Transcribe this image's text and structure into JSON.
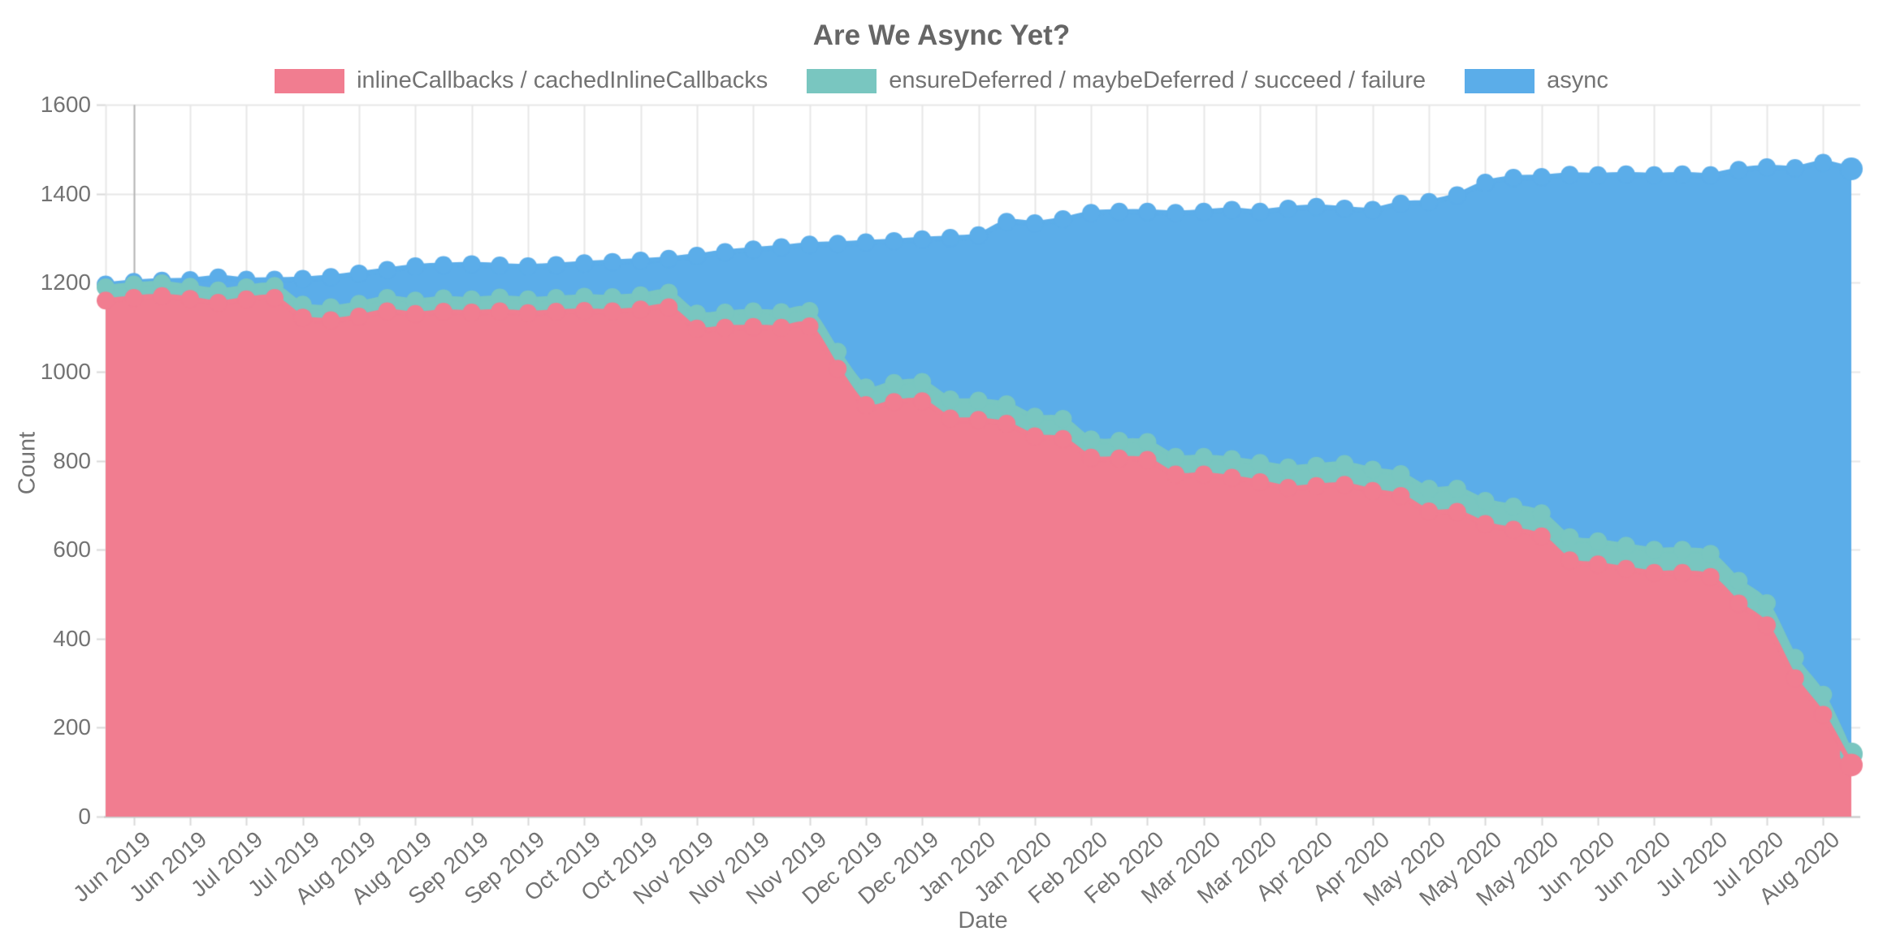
{
  "title": "Are We Async Yet?",
  "legend": {
    "items": [
      {
        "label": "inlineCallbacks / cachedInlineCallbacks",
        "color": "#f17d90"
      },
      {
        "label": "ensureDeferred / maybeDeferred / succeed / failure",
        "color": "#79c6c0"
      },
      {
        "label": "async",
        "color": "#5bade9"
      }
    ]
  },
  "chart_data": {
    "type": "area",
    "stacked": true,
    "title": "Are We Async Yet?",
    "xlabel": "Date",
    "ylabel": "Count",
    "ylim": [
      0,
      1600
    ],
    "grid": true,
    "legend_position": "top",
    "point_markers": true,
    "y_ticks": [
      0,
      200,
      400,
      600,
      800,
      1000,
      1200,
      1400,
      1600
    ],
    "x_tick_labels": [
      "Jun 2019",
      "Jun 2019",
      "Jul 2019",
      "Jul 2019",
      "Aug 2019",
      "Aug 2019",
      "Sep 2019",
      "Sep 2019",
      "Oct 2019",
      "Oct 2019",
      "Nov 2019",
      "Nov 2019",
      "Nov 2019",
      "Dec 2019",
      "Dec 2019",
      "Jan 2020",
      "Jan 2020",
      "Feb 2020",
      "Feb 2020",
      "Mar 2020",
      "Mar 2020",
      "Apr 2020",
      "Apr 2020",
      "May 2020",
      "May 2020",
      "May 2020",
      "Jun 2020",
      "Jun 2020",
      "Jul 2020",
      "Jul 2020",
      "Aug 2020"
    ],
    "x_tick_first_point_index": 1,
    "x_tick_point_step": 2,
    "points_per_week": 1,
    "series": [
      {
        "name": "inlineCallbacks / cachedInlineCallbacks",
        "color": "#f17d90",
        "values": [
          1160,
          1166,
          1170,
          1164,
          1155,
          1163,
          1166,
          1122,
          1116,
          1124,
          1136,
          1130,
          1135,
          1133,
          1136,
          1132,
          1135,
          1137,
          1136,
          1140,
          1145,
          1097,
          1099,
          1101,
          1099,
          1102,
          1007,
          925,
          932,
          934,
          895,
          892,
          883,
          855,
          849,
          807,
          805,
          802,
          769,
          769,
          762,
          752,
          739,
          743,
          746,
          732,
          721,
          686,
          685,
          658,
          645,
          630,
          576,
          567,
          557,
          548,
          548,
          539,
          479,
          430,
          311,
          229,
          116
        ]
      },
      {
        "name": "ensureDeferred / maybeDeferred / succeed / failure",
        "color": "#79c6c0",
        "values": [
          30,
          30,
          29,
          27,
          28,
          27,
          27,
          29,
          29,
          29,
          30,
          30,
          30,
          30,
          31,
          31,
          31,
          32,
          32,
          32,
          33,
          34,
          34,
          35,
          35,
          35,
          38,
          40,
          43,
          43,
          43,
          43,
          44,
          44,
          45,
          41,
          40,
          40,
          40,
          40,
          42,
          43,
          46,
          46,
          47,
          48,
          49,
          51,
          52,
          52,
          52,
          52,
          52,
          52,
          52,
          52,
          52,
          52,
          51,
          50,
          46,
          45,
          25
        ]
      },
      {
        "name": "async",
        "color": "#5bade9",
        "values": [
          6,
          6,
          6,
          15,
          29,
          17,
          14,
          58,
          68,
          68,
          63,
          77,
          75,
          79,
          72,
          74,
          74,
          75,
          79,
          78,
          76,
          130,
          136,
          139,
          146,
          149,
          243,
          326,
          319,
          321,
          363,
          372,
          410,
          435,
          449,
          509,
          515,
          518,
          548,
          551,
          560,
          565,
          582,
          582,
          574,
          584,
          608,
          645,
          660,
          715,
          739,
          756,
          815,
          823,
          835,
          842,
          844,
          851,
          924,
          980,
          1101,
          1196,
          1315
        ]
      }
    ]
  }
}
